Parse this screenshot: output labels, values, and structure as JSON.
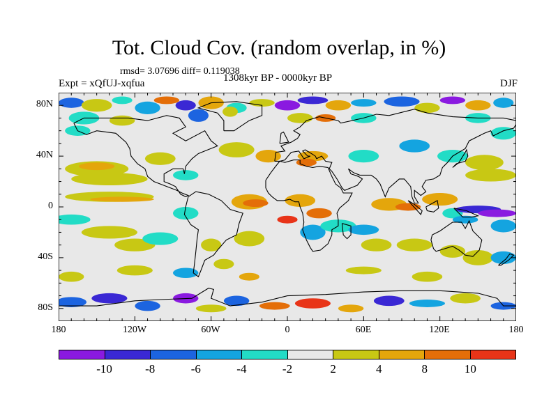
{
  "title": "Tot. Cloud Cov. (random overlap, in %)",
  "stats": "rmsd= 3.07696 diff= 0.119038",
  "expt": "Expt = xQfUJ-xqfua",
  "period": "1308kyr BP - 0000kyr BP",
  "season": "DJF",
  "y_ticks": [
    "80N",
    "40N",
    "0",
    "40S",
    "80S"
  ],
  "x_ticks": [
    "180",
    "120W",
    "60W",
    "0",
    "60E",
    "120E",
    "180"
  ],
  "colorbar": {
    "colors": [
      "#8a1ae0",
      "#3a28d4",
      "#1c64e0",
      "#14a4e0",
      "#22dcc6",
      "#e8e8e8",
      "#c8c814",
      "#e4a60c",
      "#e46e08",
      "#e83418"
    ],
    "labels": [
      "-10",
      "-8",
      "-6",
      "-4",
      "-2",
      "2",
      "4",
      "8",
      "10"
    ]
  }
}
